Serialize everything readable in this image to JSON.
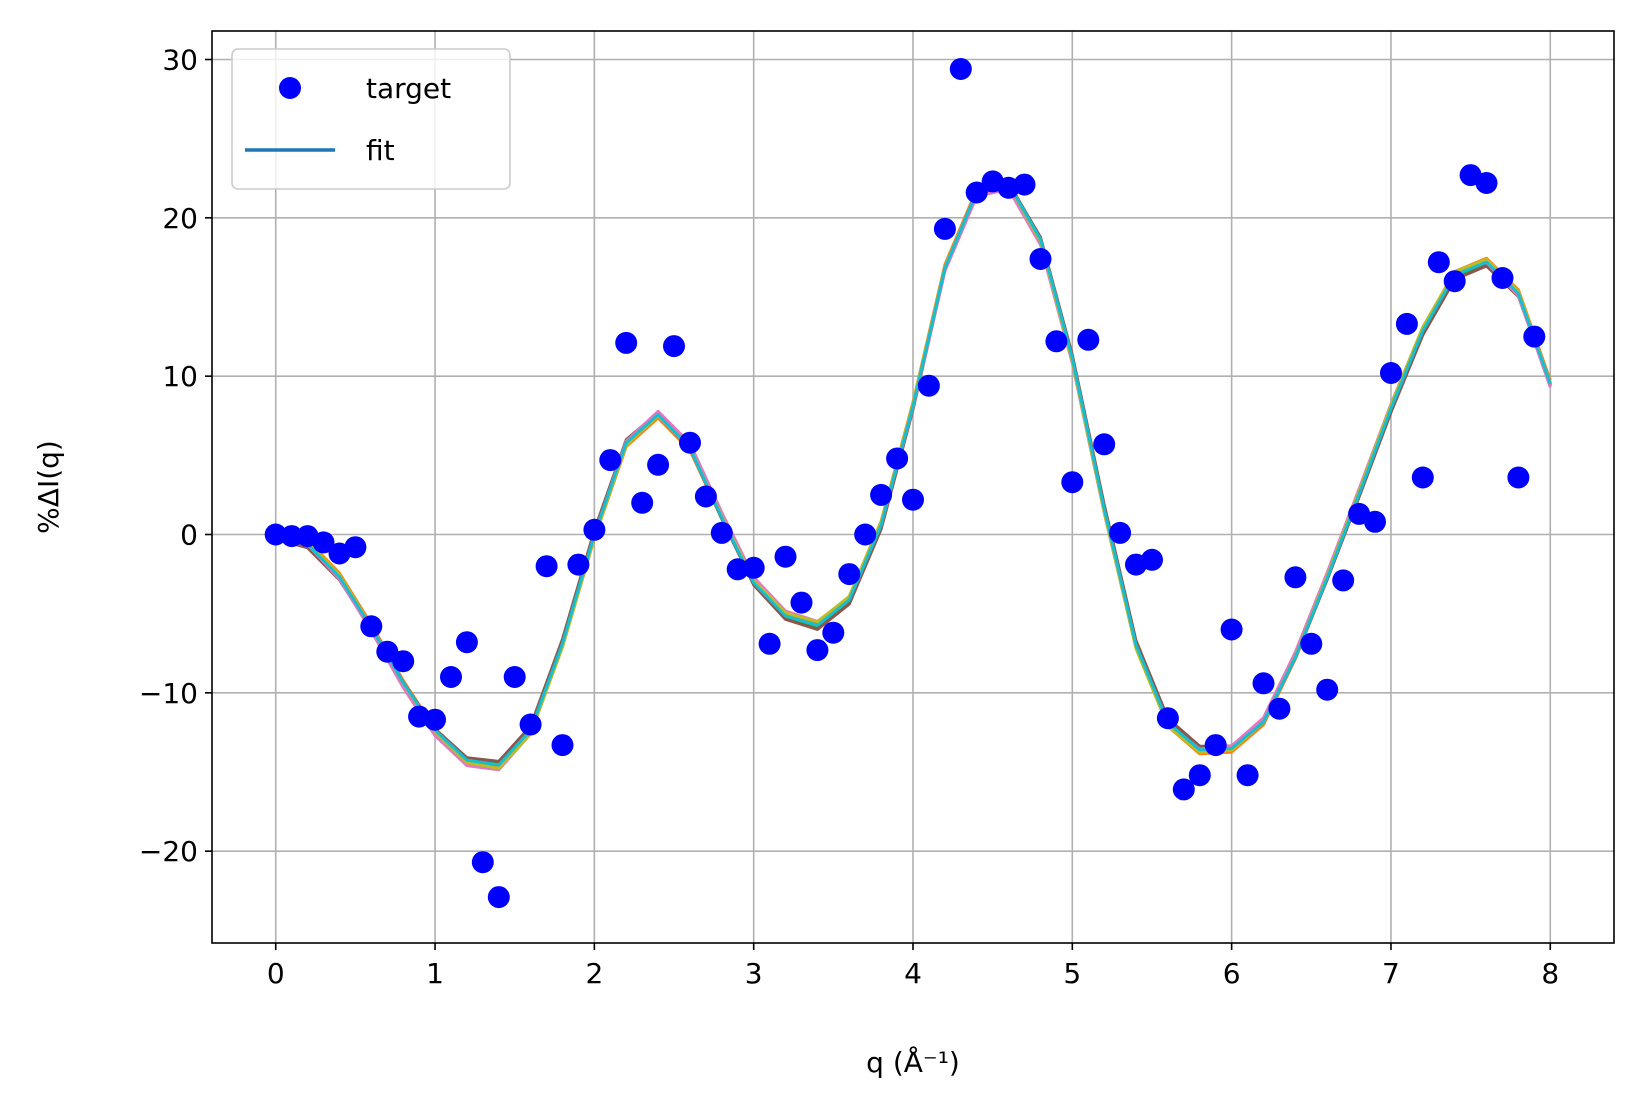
{
  "chart_data": {
    "type": "line",
    "xlabel": "q (Å⁻¹)",
    "ylabel": "%ΔI(q)",
    "xlim": [
      -0.4,
      8.4
    ],
    "ylim": [
      -25.8,
      31.8
    ],
    "xticks": [
      0,
      1,
      2,
      3,
      4,
      5,
      6,
      7,
      8
    ],
    "yticks": [
      -20,
      -10,
      0,
      10,
      20,
      30
    ],
    "xtick_labels": [
      "0",
      "1",
      "2",
      "3",
      "4",
      "5",
      "6",
      "7",
      "8"
    ],
    "ytick_labels": [
      "−20",
      "−10",
      "0",
      "10",
      "20",
      "30"
    ],
    "grid": true,
    "legend": {
      "placement": "upper-left",
      "entries": [
        {
          "label": "target",
          "marker": "circle",
          "color": "#0000ff"
        },
        {
          "label": "fit",
          "marker": "line",
          "color": "#1f77b4"
        }
      ]
    },
    "target": {
      "name": "target",
      "color": "#0000ff",
      "points": [
        [
          0.0,
          0.0
        ],
        [
          0.1,
          -0.1
        ],
        [
          0.2,
          -0.1
        ],
        [
          0.3,
          -0.5
        ],
        [
          0.4,
          -1.2
        ],
        [
          0.5,
          -0.8
        ],
        [
          0.6,
          -5.8
        ],
        [
          0.7,
          -7.4
        ],
        [
          0.8,
          -8.0
        ],
        [
          0.9,
          -11.5
        ],
        [
          1.0,
          -11.7
        ],
        [
          1.1,
          -9.0
        ],
        [
          1.2,
          -6.8
        ],
        [
          1.3,
          -20.7
        ],
        [
          1.4,
          -22.9
        ],
        [
          1.5,
          -9.0
        ],
        [
          1.6,
          -12.0
        ],
        [
          1.7,
          -2.0
        ],
        [
          1.8,
          -13.3
        ],
        [
          1.9,
          -1.9
        ],
        [
          2.0,
          0.3
        ],
        [
          2.1,
          4.7
        ],
        [
          2.2,
          12.1
        ],
        [
          2.3,
          2.0
        ],
        [
          2.4,
          4.4
        ],
        [
          2.5,
          11.9
        ],
        [
          2.6,
          5.8
        ],
        [
          2.7,
          2.4
        ],
        [
          2.8,
          0.1
        ],
        [
          2.9,
          -2.2
        ],
        [
          3.0,
          -2.1
        ],
        [
          3.1,
          -6.9
        ],
        [
          3.2,
          -1.4
        ],
        [
          3.3,
          -4.3
        ],
        [
          3.4,
          -7.3
        ],
        [
          3.5,
          -6.2
        ],
        [
          3.6,
          -2.5
        ],
        [
          3.7,
          0.0
        ],
        [
          3.8,
          2.5
        ],
        [
          3.9,
          4.8
        ],
        [
          4.0,
          2.2
        ],
        [
          4.1,
          9.4
        ],
        [
          4.2,
          19.3
        ],
        [
          4.3,
          29.4
        ],
        [
          4.4,
          21.6
        ],
        [
          4.5,
          22.3
        ],
        [
          4.6,
          21.9
        ],
        [
          4.7,
          22.1
        ],
        [
          4.8,
          17.4
        ],
        [
          4.9,
          12.2
        ],
        [
          5.0,
          3.3
        ],
        [
          5.1,
          12.3
        ],
        [
          5.2,
          5.7
        ],
        [
          5.3,
          0.1
        ],
        [
          5.4,
          -1.9
        ],
        [
          5.5,
          -1.6
        ],
        [
          5.6,
          -11.6
        ],
        [
          5.7,
          -16.1
        ],
        [
          5.8,
          -15.2
        ],
        [
          5.9,
          -13.3
        ],
        [
          6.0,
          -6.0
        ],
        [
          6.1,
          -15.2
        ],
        [
          6.2,
          -9.4
        ],
        [
          6.3,
          -11.0
        ],
        [
          6.4,
          -2.7
        ],
        [
          6.5,
          -6.9
        ],
        [
          6.6,
          -9.8
        ],
        [
          6.7,
          -2.9
        ],
        [
          6.8,
          1.3
        ],
        [
          6.9,
          0.8
        ],
        [
          7.0,
          10.2
        ],
        [
          7.1,
          13.3
        ],
        [
          7.2,
          3.6
        ],
        [
          7.3,
          17.2
        ],
        [
          7.4,
          16.0
        ],
        [
          7.5,
          22.7
        ],
        [
          7.6,
          22.2
        ],
        [
          7.7,
          16.2
        ],
        [
          7.8,
          3.6
        ],
        [
          7.9,
          12.5
        ]
      ]
    },
    "fit_colors": [
      "#1f77b4",
      "#ff7f0e",
      "#2ca02c",
      "#d62728",
      "#9467bd",
      "#8c564b",
      "#e377c2",
      "#7f7f7f",
      "#bcbd22",
      "#17becf"
    ],
    "fit": {
      "name": "fit",
      "x": [
        0.0,
        0.2,
        0.4,
        0.6,
        0.8,
        1.0,
        1.2,
        1.4,
        1.6,
        1.8,
        2.0,
        2.2,
        2.4,
        2.6,
        2.8,
        3.0,
        3.2,
        3.4,
        3.6,
        3.8,
        4.0,
        4.2,
        4.4,
        4.6,
        4.8,
        5.0,
        5.2,
        5.4,
        5.6,
        5.8,
        6.0,
        6.2,
        6.4,
        6.6,
        6.8,
        7.0,
        7.2,
        7.4,
        7.6,
        7.8,
        8.0
      ],
      "y": [
        0.0,
        -0.6,
        -2.7,
        -5.9,
        -9.4,
        -12.4,
        -14.3,
        -14.6,
        -12.4,
        -6.9,
        0.0,
        5.8,
        7.6,
        5.5,
        1.1,
        -3.0,
        -5.1,
        -5.7,
        -4.1,
        0.6,
        8.1,
        16.8,
        21.6,
        22.1,
        18.6,
        11.1,
        1.6,
        -7.0,
        -11.9,
        -13.6,
        -13.5,
        -11.8,
        -7.7,
        -2.7,
        2.6,
        8.0,
        12.9,
        16.4,
        17.2,
        15.2,
        9.5
      ]
    }
  }
}
